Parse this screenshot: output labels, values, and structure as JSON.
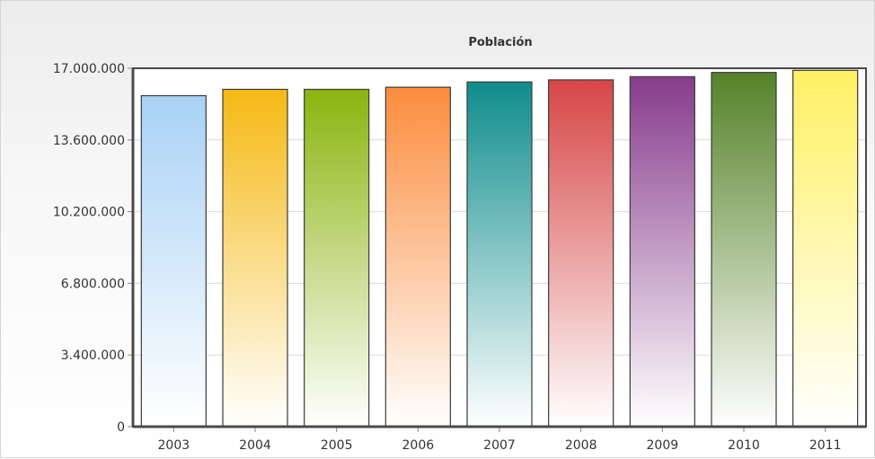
{
  "chart_data": {
    "type": "bar",
    "title": "Población",
    "xlabel": "",
    "ylabel": "",
    "categories": [
      "2003",
      "2004",
      "2005",
      "2006",
      "2007",
      "2008",
      "2009",
      "2010",
      "2011"
    ],
    "values": [
      15700000,
      16000000,
      16000000,
      16100000,
      16350000,
      16450000,
      16600000,
      16800000,
      16900000
    ],
    "ylim": [
      0,
      17000000
    ],
    "y_ticks": [
      0,
      3400000,
      6800000,
      10200000,
      13600000,
      17000000
    ],
    "y_tick_labels": [
      "0",
      "3.400.000",
      "6.800.000",
      "10.200.000",
      "13.600.000",
      "17.000.000"
    ],
    "grid": true,
    "legend": "none",
    "bar_colors": [
      "#a9d2f5",
      "#f5b914",
      "#8ab40f",
      "#fb8c3c",
      "#0f8c8c",
      "#d74646",
      "#873c8c",
      "#558228",
      "#fff064"
    ]
  }
}
